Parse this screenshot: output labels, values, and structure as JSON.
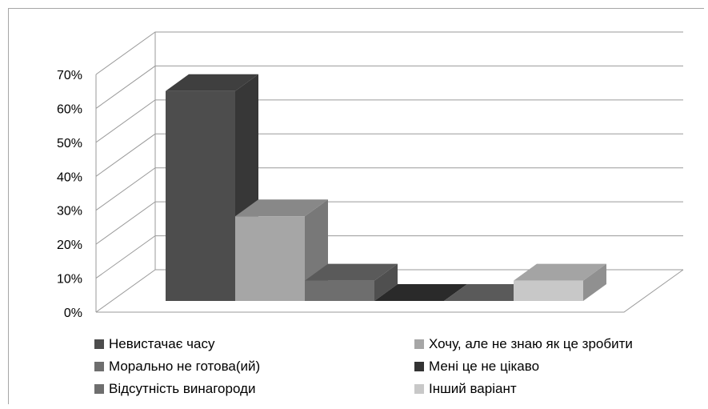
{
  "chart_data": {
    "type": "bar",
    "categories": [
      "Невистачає часу",
      "Хочу, але не знаю як це зробити",
      "Морально не готова(ий)",
      "Мені це не цікаво",
      "Відсутність винагороди",
      "Інший варіант"
    ],
    "values": [
      62,
      25,
      6,
      0,
      0,
      6
    ],
    "unit": "%",
    "ylim": [
      0,
      70
    ],
    "yticks": [
      "0%",
      "10%",
      "20%",
      "30%",
      "40%",
      "50%",
      "60%",
      "70%"
    ],
    "grid": true,
    "three_d": true,
    "legend_position": "bottom",
    "colors": [
      "#4d4d4d",
      "#a6a6a6",
      "#6e6e6e",
      "#333333",
      "#6e6e6e",
      "#c8c8c8"
    ]
  }
}
